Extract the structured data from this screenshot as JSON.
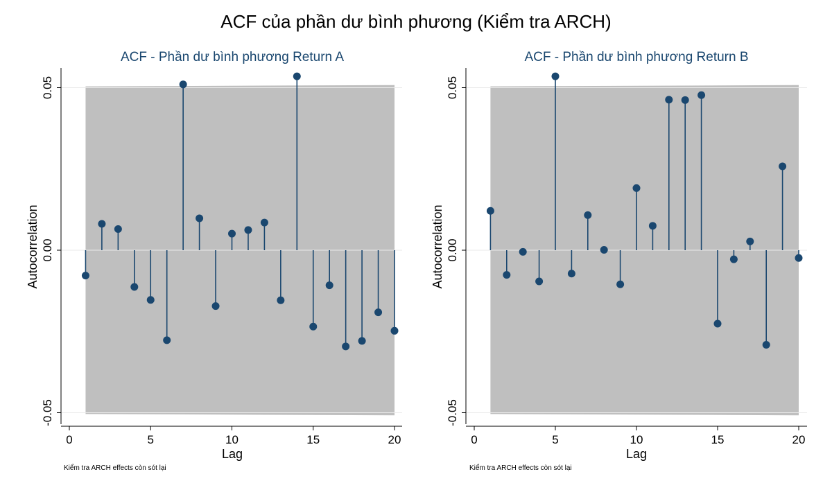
{
  "title": "ACF của phần dư bình phương (Kiểm tra ARCH)",
  "colors": {
    "marker": "#1a476f",
    "band": "#bfbfbf",
    "grid": "#eaeaea",
    "axis": "#000000"
  },
  "chart_data": [
    {
      "type": "stem",
      "title": "ACF - Phần dư bình phương Return A",
      "xlabel": "Lag",
      "ylabel": "Autocorrelation",
      "note": "Kiểm tra ARCH effects còn sót lại",
      "xlim": [
        0,
        20
      ],
      "ylim": [
        -0.05,
        0.05
      ],
      "x_ticks": [
        "0",
        "5",
        "10",
        "15",
        "20"
      ],
      "y_ticks": [
        "0.05",
        "0.00",
        "-0.05"
      ],
      "lags": [
        1,
        2,
        3,
        4,
        5,
        6,
        7,
        8,
        9,
        10,
        11,
        12,
        13,
        14,
        15,
        16,
        17,
        18,
        19,
        20
      ],
      "values": [
        -0.0078,
        0.0081,
        0.0065,
        -0.0113,
        -0.0153,
        -0.0277,
        0.051,
        0.0098,
        -0.0172,
        0.0051,
        0.0062,
        0.0085,
        -0.0154,
        0.0535,
        -0.0235,
        -0.0108,
        -0.0296,
        -0.0279,
        -0.0191,
        -0.0248
      ],
      "confidence_band": {
        "upper": [
          0.0504,
          0.0508
        ],
        "lower": [
          -0.0504,
          -0.0508
        ]
      }
    },
    {
      "type": "stem",
      "title": "ACF - Phần dư bình phương Return B",
      "xlabel": "Lag",
      "ylabel": "Autocorrelation",
      "note": "Kiểm tra ARCH effects còn sót lại",
      "xlim": [
        0,
        20
      ],
      "ylim": [
        -0.05,
        0.05
      ],
      "x_ticks": [
        "0",
        "5",
        "10",
        "15",
        "20"
      ],
      "y_ticks": [
        "0.05",
        "0.00",
        "-0.05"
      ],
      "lags": [
        1,
        2,
        3,
        4,
        5,
        6,
        7,
        8,
        9,
        10,
        11,
        12,
        13,
        14,
        15,
        16,
        17,
        18,
        19,
        20
      ],
      "values": [
        0.0121,
        -0.0076,
        -0.0005,
        -0.0096,
        0.0535,
        -0.0072,
        0.0108,
        0.0001,
        -0.0105,
        0.0191,
        0.0075,
        0.0463,
        0.0462,
        0.0477,
        -0.0226,
        -0.0028,
        0.0027,
        -0.0291,
        0.0258,
        -0.0024
      ],
      "confidence_band": {
        "upper": [
          0.0504,
          0.0508
        ],
        "lower": [
          -0.0504,
          -0.0508
        ]
      }
    }
  ]
}
